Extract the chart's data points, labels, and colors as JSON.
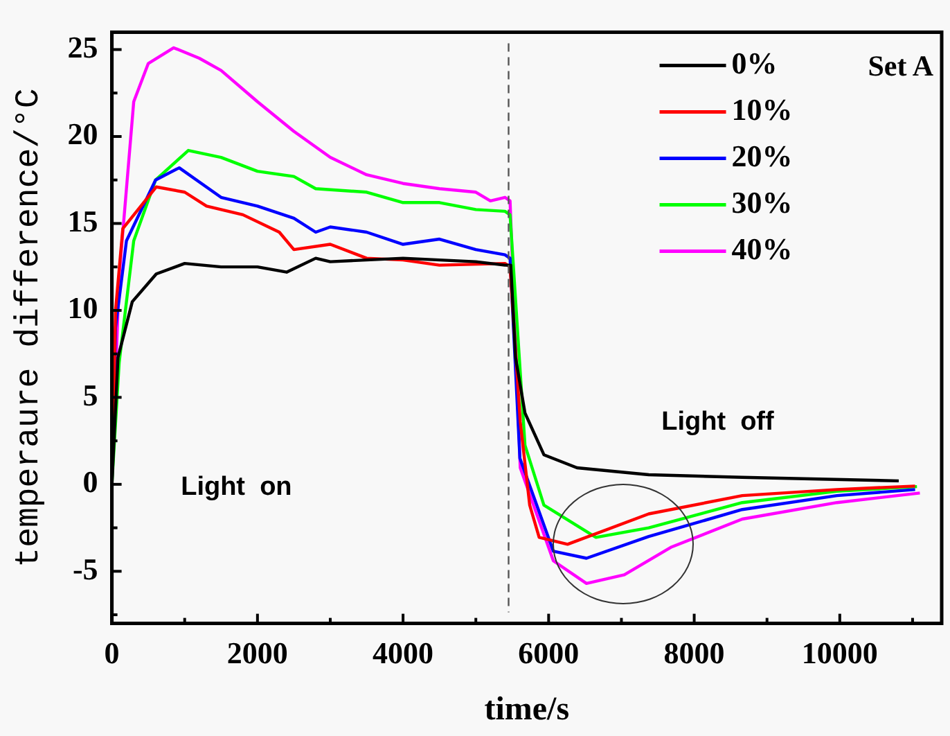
{
  "chart_data": {
    "type": "line",
    "title": "Set A",
    "xlabel": "time/s",
    "ylabel": "temperaure difference/°C",
    "xlim": [
      0,
      11400
    ],
    "ylim": [
      -8,
      26
    ],
    "xticks": [
      0,
      {
        "value": 1000,
        "label": null
      },
      2000,
      {
        "value": 3000,
        "label": null
      },
      4000,
      {
        "value": 5000,
        "label": null
      },
      6000,
      {
        "value": 7000,
        "label": null
      },
      8000,
      {
        "value": 9000,
        "label": null
      },
      10000,
      {
        "value": 11000,
        "label": null
      }
    ],
    "yticks": [
      {
        "value": -7.5,
        "label": null
      },
      -5,
      {
        "value": -2.5,
        "label": null
      },
      0,
      {
        "value": 2.5,
        "label": null
      },
      5,
      {
        "value": 7.5,
        "label": null
      },
      10,
      {
        "value": 12.5,
        "label": null
      },
      15,
      {
        "value": 17.5,
        "label": null
      },
      20,
      {
        "value": 22.5,
        "label": null
      },
      25
    ],
    "grid": false,
    "legend": "top right",
    "marker": "none",
    "line_style": "solid",
    "ref_lines": [
      {
        "axis": "x",
        "value": 5450,
        "label": null,
        "color": "#555555",
        "line_style": "dashed"
      }
    ],
    "annotations": [
      "Light  on",
      "Light  off"
    ],
    "series": [
      {
        "name": "0%",
        "color": "#000000",
        "x": [
          0,
          84,
          280,
          610,
          1000,
          1500,
          2000,
          2400,
          2800,
          3000,
          4000,
          5000,
          5400,
          5480,
          5545,
          5675,
          5935,
          6390,
          7375,
          8660,
          10810
        ],
        "values": [
          0,
          7.3,
          10.5,
          12.1,
          12.7,
          12.5,
          12.5,
          12.2,
          13.0,
          12.8,
          13.0,
          12.8,
          12.6,
          12.6,
          7.3,
          4.1,
          1.7,
          0.95,
          0.55,
          0.4,
          0.2
        ]
      },
      {
        "name": "10%",
        "color": "#ff0000",
        "x": [
          0,
          50,
          150,
          610,
          1000,
          1300,
          1800,
          2300,
          2500,
          3000,
          3500,
          4000,
          4500,
          5400,
          5470,
          5610,
          5740,
          5870,
          6260,
          7375,
          8660,
          9960,
          11035
        ],
        "values": [
          0,
          10,
          14.7,
          17.1,
          16.8,
          16.0,
          15.5,
          14.5,
          13.5,
          13.8,
          13.0,
          12.9,
          12.6,
          12.7,
          12.5,
          3.6,
          -1.2,
          -3.05,
          -3.45,
          -1.7,
          -0.65,
          -0.3,
          -0.1
        ]
      },
      {
        "name": "20%",
        "color": "#0000ff",
        "x": [
          0,
          50,
          200,
          600,
          925,
          1500,
          2000,
          2500,
          2800,
          3000,
          3500,
          4000,
          4500,
          5000,
          5400,
          5470,
          5605,
          6065,
          6520,
          7375,
          8660,
          9960,
          11035
        ],
        "values": [
          0,
          9,
          14,
          17.5,
          18.2,
          16.5,
          16.0,
          15.3,
          14.5,
          14.8,
          14.5,
          13.8,
          14.1,
          13.5,
          13.2,
          13.0,
          1.5,
          -3.85,
          -4.25,
          -3.0,
          -1.45,
          -0.65,
          -0.3
        ]
      },
      {
        "name": "30%",
        "color": "#00ff00",
        "x": [
          0,
          100,
          300,
          600,
          1050,
          1500,
          2000,
          2500,
          2800,
          3500,
          4000,
          4500,
          5000,
          5400,
          5470,
          5675,
          5935,
          6650,
          7375,
          8660,
          9960,
          11060
        ],
        "values": [
          0,
          7,
          14,
          17.5,
          19.2,
          18.8,
          18.0,
          17.7,
          17.0,
          16.8,
          16.2,
          16.2,
          15.8,
          15.7,
          15.5,
          2.25,
          -1.2,
          -3.05,
          -2.5,
          -1.05,
          -0.4,
          -0.13
        ]
      },
      {
        "name": "40%",
        "color": "#ff00ff",
        "x": [
          0,
          100,
          300,
          500,
          850,
          1200,
          1500,
          2000,
          2500,
          3000,
          3500,
          4000,
          4500,
          5000,
          5200,
          5400,
          5470,
          5610,
          6065,
          6520,
          7040,
          7690,
          8660,
          9960,
          11100
        ],
        "values": [
          0,
          12,
          22,
          24.2,
          25.1,
          24.5,
          23.8,
          22.0,
          20.3,
          18.8,
          17.8,
          17.3,
          17.0,
          16.8,
          16.3,
          16.5,
          16.3,
          0.95,
          -4.4,
          -5.7,
          -5.2,
          -3.6,
          -2.0,
          -1.05,
          -0.5
        ]
      }
    ]
  }
}
